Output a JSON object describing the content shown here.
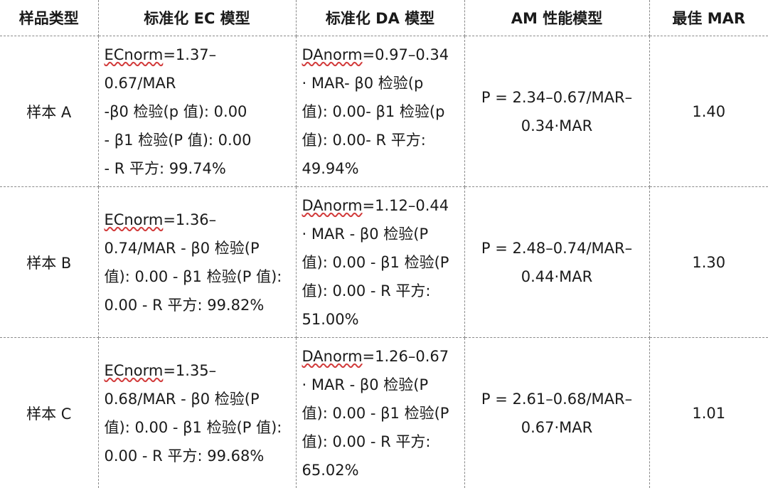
{
  "headers": [
    "样品类型",
    "标准化 EC 模型",
    "标准化 DA 模型",
    "AM 性能模型",
    "最佳 MAR"
  ],
  "rows": [
    {
      "sample": "样本 A",
      "ec_term": "ECnorm",
      "ec_rest": "=1.37–\n0.67/MAR\n-β0 检验(p 值): 0.00\n- β1 检验(P 值): 0.00\n- R 平方: 99.74%",
      "da_term": "DAnorm",
      "da_rest": "=0.97–0.34\n· MAR- β0 检验(p\n值): 0.00- β1 检验(p\n值): 0.00- R 平方:\n49.94%",
      "perf": "P = 2.34–0.67/MAR–\n0.34·MAR",
      "best": "1.40"
    },
    {
      "sample": "样本 B",
      "ec_term": "ECnorm",
      "ec_rest": "=1.36–\n0.74/MAR - β0 检验(P\n值): 0.00 - β1 检验(P 值):\n0.00 - R 平方: 99.82%",
      "da_term": "DAnorm",
      "da_rest": "=1.12–0.44\n· MAR - β0 检验(P\n值): 0.00 - β1 检验(P\n值): 0.00 - R 平方:\n51.00%",
      "perf": "P = 2.48–0.74/MAR–\n0.44·MAR",
      "best": "1.30"
    },
    {
      "sample": "样本 C",
      "ec_term": "ECnorm",
      "ec_rest": "=1.35–\n0.68/MAR - β0 检验(P\n值): 0.00 - β1 检验(P 值):\n0.00 - R 平方: 99.68%",
      "da_term": "DAnorm",
      "da_rest": "=1.26–0.67\n· MAR - β0 检验(P\n值): 0.00 - β1 检验(P\n值): 0.00 - R 平方:\n65.02%",
      "perf": "P = 2.61–0.68/MAR–\n0.67·MAR",
      "best": "1.01"
    }
  ],
  "colors": {
    "border": "#8a8a8a",
    "spellcheck_underline": "#d23b3b",
    "text": "#1a1a1a"
  }
}
